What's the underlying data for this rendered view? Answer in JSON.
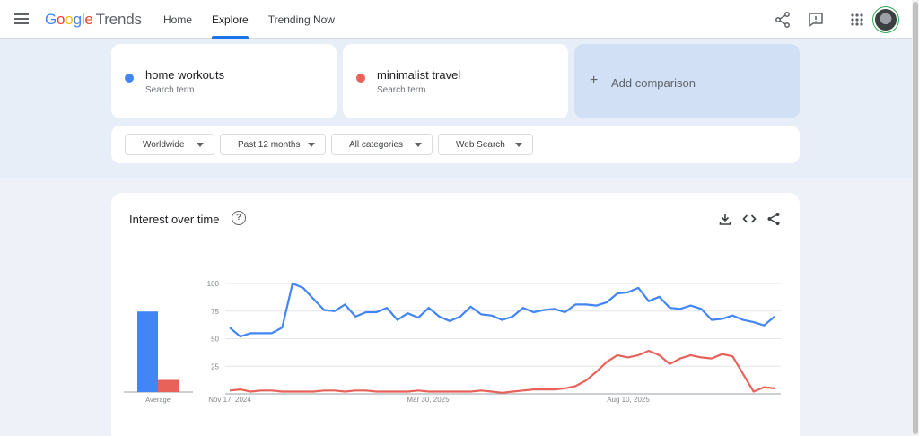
{
  "header": {
    "logo_google": "Google",
    "logo_trends": "Trends",
    "nav": [
      "Home",
      "Explore",
      "Trending Now"
    ],
    "active_nav": "Explore"
  },
  "terms": [
    {
      "name": "home workouts",
      "sub": "Search term",
      "color": "#4285f4"
    },
    {
      "name": "minimalist travel",
      "sub": "Search term",
      "color": "#e8625a"
    }
  ],
  "add_comparison": {
    "plus": "+",
    "label": "Add comparison"
  },
  "filters": [
    "Worldwide",
    "Past 12 months",
    "All categories",
    "Web Search"
  ],
  "interest": {
    "title": "Interest over time",
    "help": "?"
  },
  "chart_data": {
    "type": "line",
    "x_tick_labels": [
      "Nov 17, 2024",
      "Mar 30, 2025",
      "Aug 10, 2025"
    ],
    "ylim": [
      0,
      100
    ],
    "y_ticks": [
      100,
      75,
      50,
      25
    ],
    "grid": true,
    "series": [
      {
        "name": "home workouts",
        "color": "#4285f4",
        "values": [
          60,
          52,
          55,
          55,
          55,
          60,
          100,
          96,
          86,
          76,
          75,
          81,
          70,
          74,
          74,
          78,
          67,
          73,
          69,
          78,
          70,
          66,
          70,
          79,
          72,
          71,
          67,
          70,
          78,
          74,
          76,
          77,
          74,
          81,
          81,
          80,
          83,
          91,
          92,
          96,
          84,
          88,
          78,
          77,
          80,
          77,
          67,
          68,
          71,
          67,
          65,
          62,
          70
        ]
      },
      {
        "name": "minimalist travel",
        "color": "#e8625a",
        "values": [
          3,
          4,
          2,
          3,
          3,
          2,
          2,
          2,
          2,
          3,
          3,
          2,
          3,
          3,
          2,
          2,
          2,
          2,
          3,
          2,
          2,
          2,
          2,
          2,
          3,
          2,
          1,
          2,
          3,
          4,
          4,
          4,
          5,
          7,
          12,
          20,
          29,
          35,
          33,
          35,
          39,
          35,
          27,
          32,
          35,
          33,
          32,
          36,
          34,
          18,
          2,
          6,
          5
        ]
      }
    ],
    "average_bars": [
      {
        "series": "home workouts",
        "value": 73,
        "color": "#4285f4"
      },
      {
        "series": "minimalist travel",
        "value": 11,
        "color": "#e8625a"
      }
    ],
    "average_label": "Average"
  }
}
